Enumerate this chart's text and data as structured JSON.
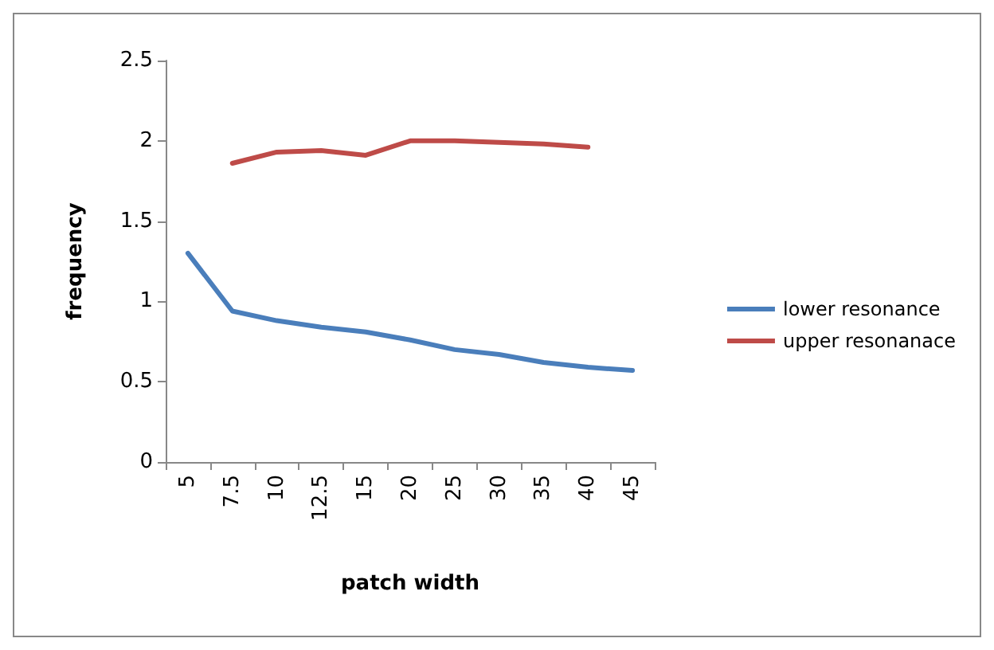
{
  "chart_data": {
    "type": "line",
    "xlabel": "patch width",
    "ylabel": "frequency",
    "categories": [
      "5",
      "7.5",
      "10",
      "12.5",
      "15",
      "20",
      "25",
      "30",
      "35",
      "40",
      "45"
    ],
    "series": [
      {
        "name": "lower resonance",
        "color": "#4a7ebb",
        "values": [
          1.3,
          0.94,
          0.88,
          0.84,
          0.81,
          0.76,
          0.7,
          0.67,
          0.62,
          0.59,
          0.57
        ]
      },
      {
        "name": "upper resonanace",
        "color": "#be4b48",
        "values": [
          null,
          1.86,
          1.93,
          1.94,
          1.91,
          2.0,
          2.0,
          1.99,
          1.98,
          1.96,
          null
        ]
      }
    ],
    "ylim": [
      0,
      2.5
    ],
    "yticks": [
      0,
      0.5,
      1,
      1.5,
      2,
      2.5
    ],
    "grid": false,
    "legend": "right",
    "marker": "none",
    "line_style": "solid"
  }
}
